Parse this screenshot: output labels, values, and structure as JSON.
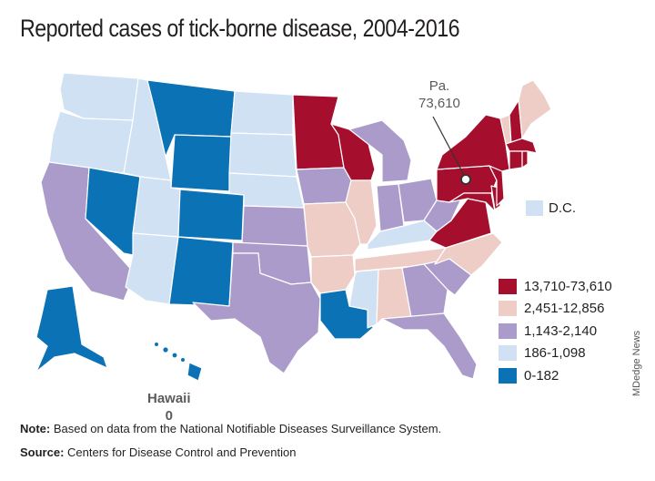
{
  "title": "Reported cases of tick-borne disease, 2004-2016",
  "legend": [
    {
      "label": "13,710-73,610",
      "color": "#a50f2d"
    },
    {
      "label": "2,451-12,856",
      "color": "#edcdc6"
    },
    {
      "label": "1,143-2,140",
      "color": "#ab9bcb"
    },
    {
      "label": "186-1,098",
      "color": "#cfe1f3"
    },
    {
      "label": "0-182",
      "color": "#0b72b5"
    }
  ],
  "dc": {
    "label": "D.C.",
    "color": "#cfe1f3"
  },
  "callouts": {
    "pa": {
      "name": "Pa.",
      "value": "73,610"
    },
    "hawaii": {
      "name": "Hawaii",
      "value": "0"
    }
  },
  "note": {
    "label": "Note:",
    "text": " Based on data from the National Notifiable Diseases Surveillance System."
  },
  "source": {
    "label": "Source:",
    "text": " Centers for Disease Control and Prevention"
  },
  "credit": "MDedge News",
  "state_classes": {
    "WA": 3,
    "OR": 3,
    "ID": 3,
    "UT": 3,
    "AZ": 3,
    "ND": 3,
    "SD": 3,
    "NE": 3,
    "KY": 3,
    "MS": 3,
    "MT": 4,
    "WY": 4,
    "CO": 4,
    "NM": 4,
    "NV": 4,
    "LA": 4,
    "AK": 4,
    "HI": 4,
    "CA": 2,
    "KS": 2,
    "OK": 2,
    "TX": 2,
    "IA": 2,
    "MI": 2,
    "IN": 2,
    "OH": 2,
    "WV": 2,
    "GA": 2,
    "SC": 2,
    "FL": 2,
    "MO": 1,
    "IL": 1,
    "AR": 1,
    "TN": 1,
    "AL": 1,
    "NC": 1,
    "ME": 1,
    "VT": 1,
    "MN": 0,
    "WI": 0,
    "PA": 0,
    "NY": 0,
    "NH": 0,
    "MA": 0,
    "CT": 0,
    "RI": 0,
    "NJ": 0,
    "DE": 0,
    "MD": 0,
    "VA": 0
  }
}
